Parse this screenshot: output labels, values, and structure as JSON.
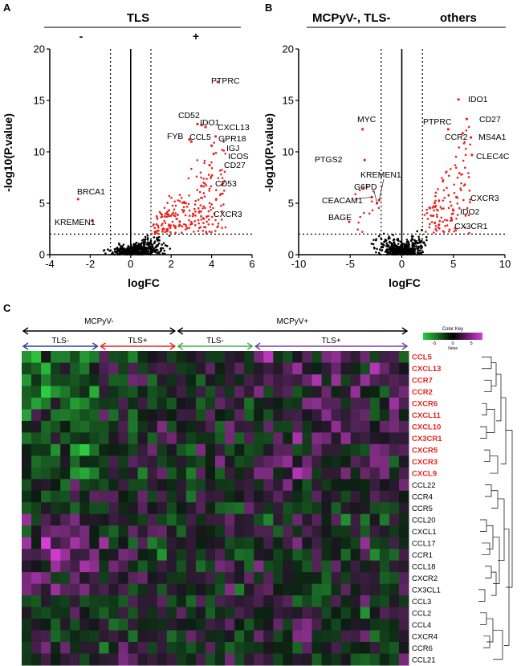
{
  "panel_a": {
    "letter": "A",
    "group_title": "TLS",
    "minus_label": "-",
    "plus_label": "+",
    "chart_data": {
      "type": "scatter",
      "xlabel": "logFC",
      "ylabel": "-log10(P.value)",
      "xlim": [
        -4,
        6
      ],
      "ylim": [
        0,
        20
      ],
      "xticks": [
        -4,
        -2,
        0,
        2,
        4,
        6
      ],
      "yticks": [
        0,
        5,
        10,
        15,
        20
      ],
      "thresholds": {
        "x": [
          -1,
          1
        ],
        "y": 2
      },
      "colors": {
        "significant": "#e8231f",
        "other": "#000000"
      },
      "labeled_points": [
        {
          "label": "PTPRC",
          "x": 4.3,
          "y": 16.8,
          "sig": true
        },
        {
          "label": "CD52",
          "x": 3.3,
          "y": 12.7,
          "sig": true
        },
        {
          "label": "IDO1",
          "x": 3.5,
          "y": 12.6,
          "sig": true
        },
        {
          "label": "CXCL13",
          "x": 3.7,
          "y": 12.4,
          "sig": true
        },
        {
          "label": "FYB",
          "x": 2.9,
          "y": 11.2,
          "sig": true
        },
        {
          "label": "CCL5",
          "x": 3.0,
          "y": 11.0,
          "sig": true
        },
        {
          "label": "GPR18",
          "x": 4.2,
          "y": 11.5,
          "sig": true
        },
        {
          "label": "IGJ",
          "x": 4.0,
          "y": 10.6,
          "sig": true
        },
        {
          "label": "ICOS",
          "x": 4.1,
          "y": 9.8,
          "sig": true
        },
        {
          "label": "CD27",
          "x": 3.9,
          "y": 8.7,
          "sig": true
        },
        {
          "label": "CD53",
          "x": 3.5,
          "y": 6.7,
          "sig": true
        },
        {
          "label": "CXCR3",
          "x": 3.4,
          "y": 4.2,
          "sig": true
        },
        {
          "label": "BRCA1",
          "x": -2.6,
          "y": 5.4,
          "sig": true
        },
        {
          "label": "KREMEN1",
          "x": -1.9,
          "y": 3.3,
          "sig": true
        }
      ]
    }
  },
  "panel_b": {
    "letter": "B",
    "left_title": "MCPyV-, TLS-",
    "right_title": "others",
    "chart_data": {
      "type": "scatter",
      "xlabel": "logFC",
      "ylabel": "-log10(P.value)",
      "xlim": [
        -10,
        10
      ],
      "ylim": [
        0,
        20
      ],
      "xticks": [
        -10,
        -5,
        0,
        5,
        10
      ],
      "yticks": [
        0,
        5,
        10,
        15,
        20
      ],
      "thresholds": {
        "x": [
          -2,
          2
        ],
        "y": 2
      },
      "colors": {
        "significant": "#e8231f",
        "other": "#000000"
      },
      "labeled_points": [
        {
          "label": "IDO1",
          "x": 5.5,
          "y": 15.1,
          "sig": true
        },
        {
          "label": "CD27",
          "x": 6.3,
          "y": 13.2,
          "sig": true
        },
        {
          "label": "PTPRC",
          "x": 4.5,
          "y": 12.2,
          "sig": true
        },
        {
          "label": "CCR2",
          "x": 5.9,
          "y": 11.8,
          "sig": true
        },
        {
          "label": "MS4A1",
          "x": 6.7,
          "y": 11.4,
          "sig": true
        },
        {
          "label": "CLEC4C",
          "x": 6.8,
          "y": 9.7,
          "sig": true
        },
        {
          "label": "CXCR3",
          "x": 5.3,
          "y": 5.6,
          "sig": true
        },
        {
          "label": "IDO2",
          "x": 5.0,
          "y": 4.3,
          "sig": true
        },
        {
          "label": "CX3CR1",
          "x": 3.6,
          "y": 2.9,
          "sig": true
        },
        {
          "label": "MYC",
          "x": -3.8,
          "y": 12.2,
          "sig": true
        },
        {
          "label": "PTGS2",
          "x": -3.6,
          "y": 9.2,
          "sig": true
        },
        {
          "label": "KREMEN1",
          "x": -2.2,
          "y": 5.3,
          "sig": true
        },
        {
          "label": "G6PD",
          "x": -2.4,
          "y": 5.0,
          "sig": true
        },
        {
          "label": "CEACAM1",
          "x": -2.9,
          "y": 5.6,
          "sig": true
        },
        {
          "label": "BAGE",
          "x": -5.1,
          "y": 3.2,
          "sig": true
        }
      ]
    }
  },
  "panel_c": {
    "letter": "C",
    "top_groups": [
      "MCPyV-",
      "MCPyV+"
    ],
    "sub_groups": [
      {
        "label": "TLS-",
        "color": "#2e3e9c"
      },
      {
        "label": "TLS+",
        "color": "#e8231f"
      },
      {
        "label": "TLS-",
        "color": "#3fae49"
      },
      {
        "label": "TLS+",
        "color": "#7b3f9e"
      }
    ],
    "color_key": {
      "title": "Color Key",
      "axis_label": "Value",
      "ticks": [
        -5,
        0,
        5
      ],
      "low_color": "#2ecc40",
      "mid_color": "#000000",
      "high_color": "#d63fd6"
    },
    "chart_data": {
      "type": "heatmap",
      "columns_by_group": [
        8,
        8,
        8,
        16
      ],
      "rows": [
        "CCL5",
        "CXCL13",
        "CCR7",
        "CCR2",
        "CXCR6",
        "CXCL11",
        "CXCL10",
        "CX3CR1",
        "CXCR5",
        "CXCR3",
        "CXCL9",
        "CCL22",
        "CCR4",
        "CCR5",
        "CCL20",
        "CXCL1",
        "CCL17",
        "CCR1",
        "CCL18",
        "CXCR2",
        "CX3CL1",
        "CCL3",
        "CCL2",
        "CCL4",
        "CXCR4",
        "CCR6",
        "CCL21"
      ],
      "highlighted_rows": [
        "CCL5",
        "CXCL13",
        "CCR7",
        "CCR2",
        "CXCR6",
        "CXCL11",
        "CXCL10",
        "CX3CR1",
        "CXCR5",
        "CXCR3",
        "CXCL9"
      ],
      "highlight_color": "#e8231f"
    }
  }
}
